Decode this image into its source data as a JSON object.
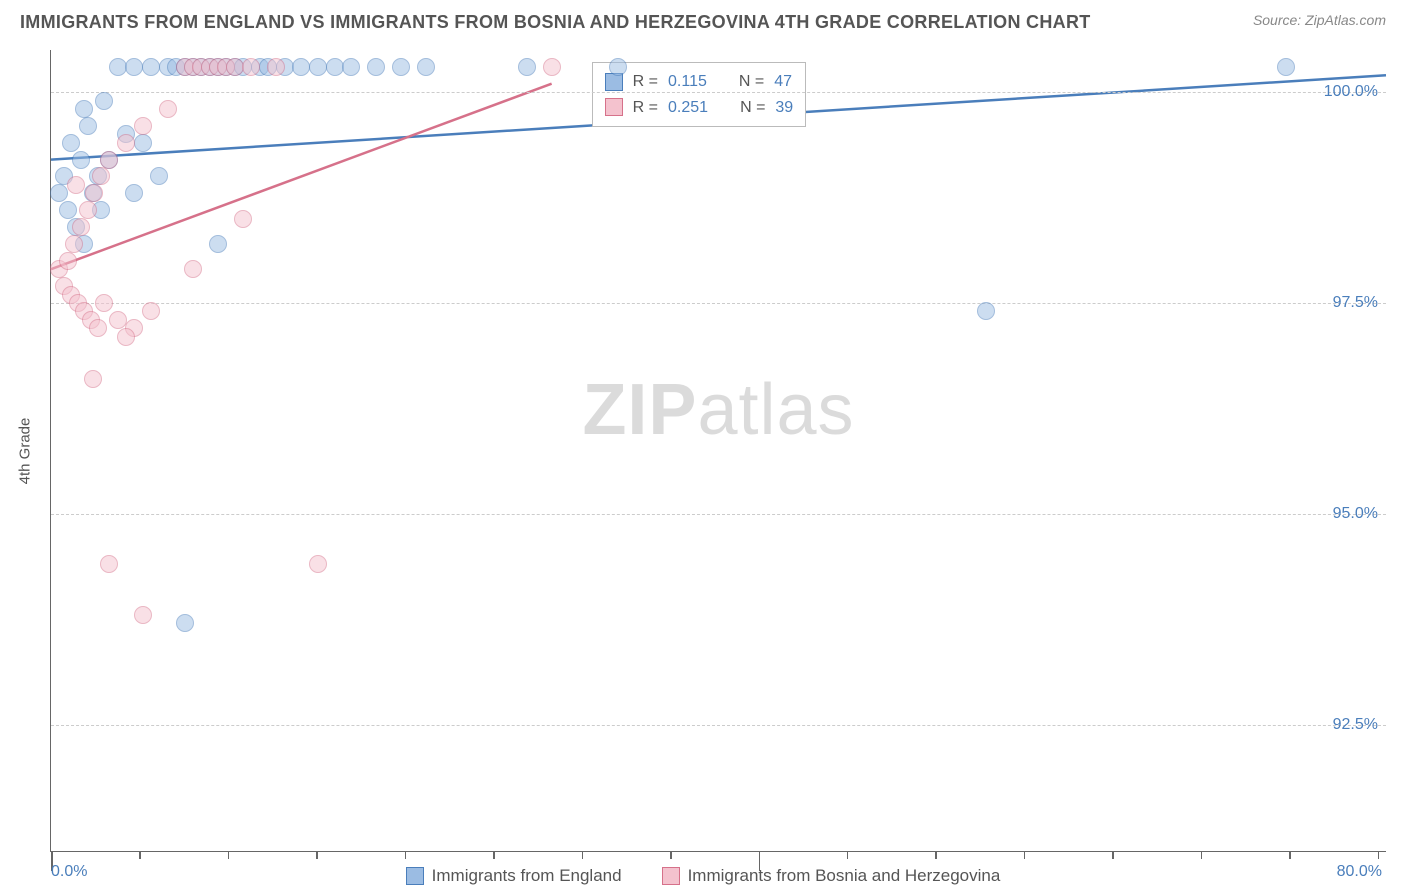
{
  "title": "IMMIGRANTS FROM ENGLAND VS IMMIGRANTS FROM BOSNIA AND HERZEGOVINA 4TH GRADE CORRELATION CHART",
  "source": "Source: ZipAtlas.com",
  "ylabel": "4th Grade",
  "watermark_bold": "ZIP",
  "watermark_light": "atlas",
  "chart": {
    "type": "scatter",
    "xlim": [
      0,
      80
    ],
    "ylim": [
      91,
      100.5
    ],
    "y_gridlines": [
      92.5,
      95.0,
      97.5,
      100.0
    ],
    "y_tick_labels": [
      "92.5%",
      "95.0%",
      "97.5%",
      "100.0%"
    ],
    "x_minor_ticks": [
      5.3,
      10.6,
      15.9,
      21.2,
      26.5,
      31.8,
      37.1,
      47.7,
      53.0,
      58.3,
      63.6,
      68.9,
      74.2,
      79.5
    ],
    "x_major_ticks": [
      0,
      42.4
    ],
    "x_left_label": "0.0%",
    "x_right_label": "80.0%",
    "grid_color": "#cccccc",
    "axis_color": "#666666",
    "tick_label_color": "#4a7ebb",
    "background": "#ffffff",
    "point_radius": 9,
    "point_opacity": 0.5,
    "series": [
      {
        "name": "Immigrants from England",
        "fill": "#9bbce3",
        "stroke": "#4a7ebb",
        "trend": {
          "x1": 0,
          "y1": 99.2,
          "x2": 80,
          "y2": 100.2,
          "width": 2.5
        },
        "r_value": "0.115",
        "n_value": "47",
        "points": [
          [
            0.5,
            98.8
          ],
          [
            0.8,
            99.0
          ],
          [
            1.0,
            98.6
          ],
          [
            1.2,
            99.4
          ],
          [
            1.5,
            98.4
          ],
          [
            1.8,
            99.2
          ],
          [
            2.0,
            98.2
          ],
          [
            2.2,
            99.6
          ],
          [
            2.5,
            98.8
          ],
          [
            2.8,
            99.0
          ],
          [
            3.0,
            98.6
          ],
          [
            3.2,
            99.9
          ],
          [
            3.5,
            99.2
          ],
          [
            4.0,
            100.3
          ],
          [
            4.5,
            99.5
          ],
          [
            5.0,
            100.3
          ],
          [
            5.5,
            99.4
          ],
          [
            6.0,
            100.3
          ],
          [
            6.5,
            99.0
          ],
          [
            7.0,
            100.3
          ],
          [
            7.5,
            100.3
          ],
          [
            8.0,
            100.3
          ],
          [
            8.5,
            100.3
          ],
          [
            9.0,
            100.3
          ],
          [
            9.5,
            100.3
          ],
          [
            10.0,
            100.3
          ],
          [
            10.5,
            100.3
          ],
          [
            11.0,
            100.3
          ],
          [
            11.5,
            100.3
          ],
          [
            12.5,
            100.3
          ],
          [
            13.0,
            100.3
          ],
          [
            14.0,
            100.3
          ],
          [
            15.0,
            100.3
          ],
          [
            16.0,
            100.3
          ],
          [
            17.0,
            100.3
          ],
          [
            18.0,
            100.3
          ],
          [
            19.5,
            100.3
          ],
          [
            21.0,
            100.3
          ],
          [
            22.5,
            100.3
          ],
          [
            28.5,
            100.3
          ],
          [
            34.0,
            100.3
          ],
          [
            8.0,
            93.7
          ],
          [
            10.0,
            98.2
          ],
          [
            5.0,
            98.8
          ],
          [
            56.0,
            97.4
          ],
          [
            74.0,
            100.3
          ],
          [
            2.0,
            99.8
          ]
        ]
      },
      {
        "name": "Immigrants from Bosnia and Herzegovina",
        "fill": "#f4c2ce",
        "stroke": "#d6718a",
        "trend": {
          "x1": 0,
          "y1": 97.9,
          "x2": 30,
          "y2": 100.1,
          "width": 2.5
        },
        "r_value": "0.251",
        "n_value": "39",
        "points": [
          [
            0.5,
            97.9
          ],
          [
            0.8,
            97.7
          ],
          [
            1.0,
            98.0
          ],
          [
            1.2,
            97.6
          ],
          [
            1.4,
            98.2
          ],
          [
            1.6,
            97.5
          ],
          [
            1.8,
            98.4
          ],
          [
            2.0,
            97.4
          ],
          [
            2.2,
            98.6
          ],
          [
            2.4,
            97.3
          ],
          [
            2.6,
            98.8
          ],
          [
            2.8,
            97.2
          ],
          [
            3.0,
            99.0
          ],
          [
            3.2,
            97.5
          ],
          [
            3.5,
            99.2
          ],
          [
            4.0,
            97.3
          ],
          [
            4.5,
            99.4
          ],
          [
            5.0,
            97.2
          ],
          [
            5.5,
            99.6
          ],
          [
            6.0,
            97.4
          ],
          [
            7.0,
            99.8
          ],
          [
            8.0,
            100.3
          ],
          [
            8.5,
            100.3
          ],
          [
            9.0,
            100.3
          ],
          [
            9.5,
            100.3
          ],
          [
            10.0,
            100.3
          ],
          [
            10.5,
            100.3
          ],
          [
            11.0,
            100.3
          ],
          [
            12.0,
            100.3
          ],
          [
            13.5,
            100.3
          ],
          [
            30.0,
            100.3
          ],
          [
            8.5,
            97.9
          ],
          [
            4.5,
            97.1
          ],
          [
            2.5,
            96.6
          ],
          [
            5.5,
            93.8
          ],
          [
            3.5,
            94.4
          ],
          [
            16.0,
            94.4
          ],
          [
            11.5,
            98.5
          ],
          [
            1.5,
            98.9
          ]
        ]
      }
    ],
    "stats_box": {
      "left_pct": 40.5,
      "top_pct": 1.5
    },
    "stats_r_label": "R  =",
    "stats_n_label": "N  ="
  },
  "legend_series1": "Immigrants from England",
  "legend_series2": "Immigrants from Bosnia and Herzegovina"
}
